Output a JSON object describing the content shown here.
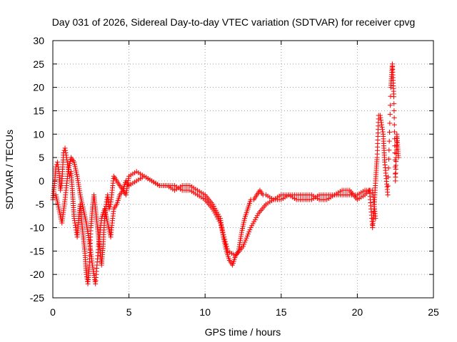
{
  "chart_data": {
    "type": "scatter",
    "title": "Day 031 of 2026, Sidereal Day-to-day VTEC variation (SDTVAR) for receiver cpvg",
    "xlabel": "GPS time / hours",
    "ylabel": "SDTVAR / TECUs",
    "xlim": [
      0,
      25
    ],
    "ylim": [
      -25,
      30
    ],
    "xticks": [
      0,
      5,
      10,
      15,
      20,
      25
    ],
    "xtick_labels": [
      "0",
      "5",
      "10",
      "15",
      "20",
      "25"
    ],
    "yticks": [
      -25,
      -20,
      -15,
      -10,
      -5,
      0,
      5,
      10,
      15,
      20,
      25,
      30
    ],
    "ytick_labels": [
      "-25",
      "-20",
      "-15",
      "-10",
      "-5",
      "0",
      "5",
      "10",
      "15",
      "20",
      "25",
      "30"
    ],
    "grid": true,
    "marker": "plus",
    "series": [
      {
        "name": "SDTVAR",
        "color": "#ff0000",
        "x": [
          0.0,
          0.1,
          0.2,
          0.3,
          0.4,
          0.5,
          0.6,
          0.7,
          0.8,
          0.9,
          1.0,
          1.1,
          1.2,
          1.3,
          1.4,
          1.5,
          1.6,
          1.7,
          1.8,
          1.9,
          2.0,
          2.1,
          2.2,
          2.3,
          2.4,
          2.5,
          2.6,
          2.7,
          2.8,
          2.9,
          3.0,
          3.1,
          3.2,
          3.3,
          3.4,
          3.5,
          3.6,
          3.7,
          3.8,
          4.0,
          4.2,
          4.4,
          4.6,
          4.8,
          5.0,
          5.5,
          6.0,
          6.5,
          7.0,
          7.5,
          8.0,
          8.5,
          9.0,
          9.5,
          10.0,
          10.5,
          11.0,
          11.2,
          11.4,
          11.6,
          11.8,
          12.0,
          12.2,
          12.4,
          12.6,
          12.8,
          13.0,
          13.2,
          13.4,
          13.6,
          13.8,
          14.0,
          14.5,
          15.0,
          15.5,
          16.0,
          16.5,
          17.0,
          17.5,
          18.0,
          18.5,
          19.0,
          19.5,
          20.0,
          20.5,
          20.8,
          21.0,
          21.1,
          21.2,
          21.3,
          21.4,
          21.5,
          21.6,
          21.7,
          21.8,
          22.0,
          22.2,
          22.3,
          22.4,
          22.5,
          22.6,
          22.7
        ],
        "y": [
          -4,
          -1,
          3,
          4,
          2,
          -2,
          0,
          6,
          7,
          5,
          3,
          1,
          2,
          -3,
          -8,
          -10,
          -12,
          -8,
          -5,
          -9,
          -12,
          -15,
          -20,
          -22,
          -18,
          -10,
          -6,
          -3,
          -6,
          -9,
          -12,
          -15,
          -18,
          -14,
          -8,
          -5,
          -3,
          -6,
          -5,
          1,
          0,
          -1,
          -2,
          -3,
          1,
          2,
          1,
          0,
          -1,
          -1,
          -2,
          -1,
          -1,
          -2,
          -3,
          -5,
          -8,
          -12,
          -15,
          -17,
          -18,
          -16,
          -15,
          -11,
          -8,
          -6,
          -4,
          -4,
          -3,
          -2,
          -3,
          -3,
          -4,
          -4,
          -3,
          -3,
          -3,
          -3,
          -4,
          -4,
          -3,
          -2,
          -2,
          -4,
          -3,
          -2,
          -10,
          -6,
          0,
          5,
          14,
          14,
          12,
          10,
          4,
          -3,
          20,
          25,
          18,
          0,
          10,
          5
        ],
        "extra_series_x": [
          0.2,
          0.4,
          0.6,
          0.8,
          1.0,
          1.2,
          1.4,
          1.6,
          1.8,
          2.0,
          2.2,
          2.4,
          2.6,
          2.8,
          3.0,
          3.2,
          3.4,
          3.6,
          3.8,
          4.0,
          4.2,
          4.4,
          4.6,
          4.8,
          5.0,
          5.5,
          6.0,
          6.5,
          7.0,
          7.5,
          8.0,
          8.5,
          9.0,
          9.5,
          10.0,
          10.5,
          11.0,
          11.5,
          12.0,
          12.5,
          13.0,
          13.5,
          14.0,
          14.5,
          15.0,
          15.5,
          16.0,
          16.5,
          17.0,
          17.5,
          18.0,
          18.5,
          19.0,
          19.5,
          20.0,
          20.5,
          21.0,
          21.2
        ],
        "extra_series_y": [
          -3,
          -6,
          -9,
          -4,
          2,
          5,
          4,
          1,
          -3,
          -6,
          -9,
          -13,
          -18,
          -22,
          -14,
          -8,
          -6,
          -9,
          -12,
          -6,
          -5,
          -3,
          -2,
          0,
          -1,
          0,
          1,
          0,
          -1,
          -1,
          -1,
          -2,
          -2,
          -3,
          -4,
          -6,
          -9,
          -15,
          -16,
          -14,
          -10,
          -7,
          -5,
          -4,
          -3,
          -3,
          -4,
          -4,
          -4,
          -3,
          -3,
          -3,
          -3,
          -3,
          -3,
          -2,
          -2,
          -8
        ]
      }
    ]
  }
}
